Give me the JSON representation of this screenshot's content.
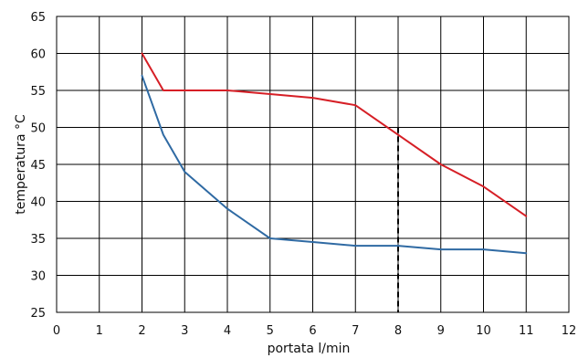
{
  "chart_data": {
    "type": "line",
    "xlabel": "portata l/min",
    "ylabel": "temperatura °C",
    "xlim": [
      0,
      12
    ],
    "ylim": [
      25,
      65
    ],
    "x_ticks": [
      0,
      1,
      2,
      3,
      4,
      5,
      6,
      7,
      8,
      9,
      10,
      11,
      12
    ],
    "y_ticks": [
      25,
      30,
      35,
      40,
      45,
      50,
      55,
      60,
      65
    ],
    "grid": true,
    "legend": "none",
    "marker_line": {
      "x": 8,
      "style": "dashed",
      "color": "#000000"
    },
    "series": [
      {
        "color": "#d61f26",
        "points": [
          [
            2,
            60
          ],
          [
            2.5,
            55
          ],
          [
            4,
            55
          ],
          [
            5,
            54.5
          ],
          [
            6,
            54
          ],
          [
            7,
            53
          ],
          [
            8,
            49
          ],
          [
            9,
            45
          ],
          [
            10,
            42
          ],
          [
            11,
            38
          ]
        ]
      },
      {
        "color": "#2f6aa3",
        "points": [
          [
            2,
            57
          ],
          [
            2.5,
            49
          ],
          [
            3,
            44
          ],
          [
            4,
            39
          ],
          [
            5,
            35
          ],
          [
            6,
            34.5
          ],
          [
            7,
            34
          ],
          [
            8,
            34
          ],
          [
            9,
            33.5
          ],
          [
            10,
            33.5
          ],
          [
            11,
            33
          ]
        ]
      }
    ]
  }
}
